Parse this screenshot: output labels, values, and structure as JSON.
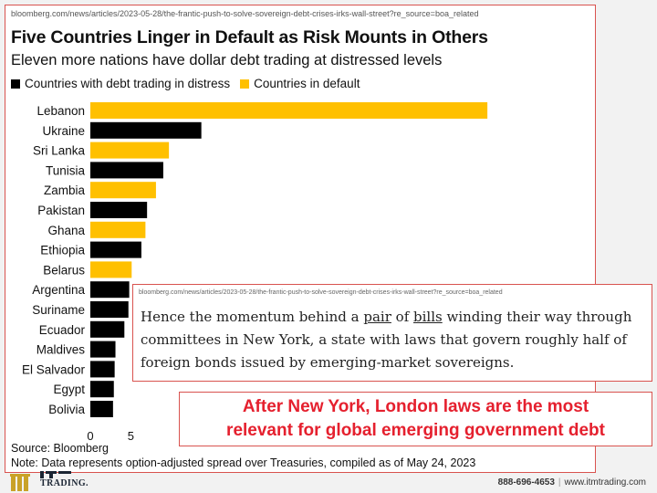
{
  "source_url": "bloomberg.com/news/articles/2023-05-28/the-frantic-push-to-solve-sovereign-debt-crises-irks-wall-street?re_source=boa_related",
  "chart_data": {
    "type": "bar",
    "orientation": "horizontal",
    "title": "Five Countries Linger in Default as Risk Mounts in Others",
    "subtitle": "Eleven more nations have dollar debt trading at distressed levels",
    "legend": [
      {
        "label": "Countries with debt trading in distress",
        "color": "#000000"
      },
      {
        "label": "Countries in default",
        "color": "#ffc000"
      }
    ],
    "legend_position": "top-left",
    "categories": [
      "Lebanon",
      "Ukraine",
      "Sri Lanka",
      "Tunisia",
      "Zambia",
      "Pakistan",
      "Ghana",
      "Ethiopia",
      "Belarus",
      "Argentina",
      "Suriname",
      "Ecuador",
      "Maldives",
      "El Salvador",
      "Egypt",
      "Bolivia"
    ],
    "values": [
      49000,
      13700,
      9700,
      9000,
      8100,
      7000,
      6800,
      6300,
      5100,
      4800,
      4700,
      4200,
      3100,
      3000,
      2900,
      2800
    ],
    "status": [
      "default",
      "distress",
      "default",
      "distress",
      "default",
      "distress",
      "default",
      "distress",
      "default",
      "distress",
      "distress",
      "distress",
      "distress",
      "distress",
      "distress",
      "distress"
    ],
    "x_ticks_visible": [
      "0",
      "5"
    ],
    "xlim": [
      0,
      50000
    ],
    "grid": false,
    "source": "Source: Bloomberg",
    "note": "Note: Data represents option-adjusted spread over Treasuries, compiled as of May 24, 2023"
  },
  "quote": {
    "url": "bloomberg.com/news/articles/2023-05-28/the-frantic-push-to-solve-sovereign-debt-crises-irks-wall-street?re_source=boa_related",
    "parts": [
      "Hence the momentum behind a ",
      "pair",
      " of ",
      "bills",
      " winding their way through committees in New York, a state with laws that govern roughly half of foreign bonds issued by emerging-market sovereigns."
    ]
  },
  "callout": {
    "line1": "After New York, London laws are the most",
    "line2": "relevant for global emerging government debt"
  },
  "footer": {
    "logo_text": "TRADING.",
    "phone": "888-696-4653",
    "website": "www.itmtrading.com"
  },
  "colors": {
    "default": "#ffc000",
    "distress": "#000000",
    "accent_red": "#e5202e",
    "frame_red": "#d9534f"
  }
}
